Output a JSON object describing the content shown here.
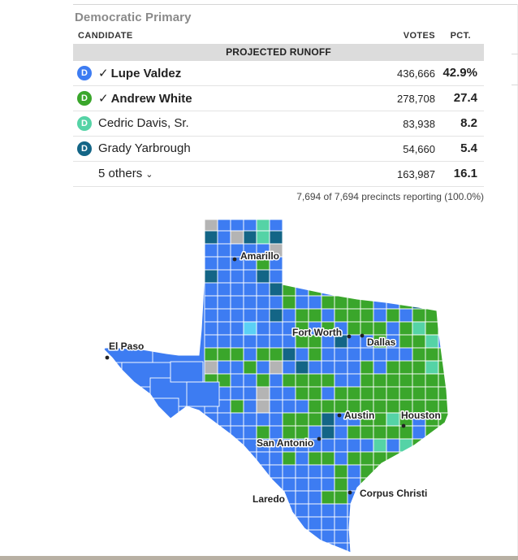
{
  "race": {
    "title": "Democratic Primary",
    "col_candidate": "CANDIDATE",
    "col_votes": "VOTES",
    "col_pct": "PCT.",
    "banner": "PROJECTED RUNOFF",
    "precincts_note": "7,694 of 7,694 precincts reporting (100.0%)"
  },
  "candidates": [
    {
      "party": "D",
      "check": "✓",
      "name": "Lupe Valdez",
      "votes": "436,666",
      "pct": "42.9%",
      "color": "#3d7cf2",
      "winner": true
    },
    {
      "party": "D",
      "check": "✓",
      "name": "Andrew White",
      "votes": "278,708",
      "pct": "27.4",
      "color": "#3aa62b",
      "winner": true
    },
    {
      "party": "D",
      "check": "",
      "name": "Cedric Davis, Sr.",
      "votes": "83,938",
      "pct": "8.2",
      "color": "#55d3a6",
      "winner": false
    },
    {
      "party": "D",
      "check": "",
      "name": "Grady Yarbrough",
      "votes": "54,660",
      "pct": "5.4",
      "color": "#136586",
      "winner": false
    }
  ],
  "others": {
    "label": "5 others",
    "chevron": "chevron-down",
    "votes": "163,987",
    "pct": "16.1"
  },
  "map": {
    "colors": {
      "valdez": "#3d7cf2",
      "white": "#3aa62b",
      "davis": "#55d3a6",
      "yarbrough": "#136586",
      "other": "#5bd0f5",
      "no_data": "#b4b4b4",
      "border": "#ffffff"
    },
    "cities": [
      {
        "name": "Amarillo"
      },
      {
        "name": "El Paso"
      },
      {
        "name": "Fort Worth"
      },
      {
        "name": "Dallas"
      },
      {
        "name": "Austin"
      },
      {
        "name": "Houston"
      },
      {
        "name": "San Antonio"
      },
      {
        "name": "Laredo"
      },
      {
        "name": "Corpus Christi"
      }
    ]
  }
}
